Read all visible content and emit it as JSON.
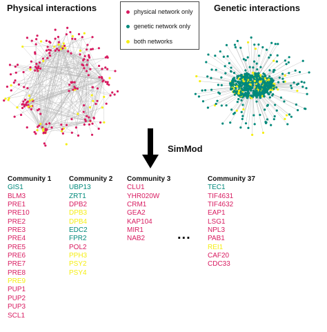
{
  "colors": {
    "physical": "#d81b60",
    "genetic": "#00897b",
    "both": "#f5ee14",
    "edges": "#b5b5b5",
    "text": "#111111"
  },
  "titles": {
    "physical": "Physical interactions",
    "genetic": "Genetic interactions"
  },
  "legend": [
    {
      "label": "physical network only",
      "color": "#d81b60"
    },
    {
      "label": "genetic network only",
      "color": "#00897b"
    },
    {
      "label": "both networks",
      "color": "#f5ee14"
    }
  ],
  "method_label": "SimMod",
  "ellipsis": "...",
  "communities": [
    {
      "title": "Community 1",
      "genes": [
        {
          "name": "GIS1",
          "net": "genetic"
        },
        {
          "name": "BLM3",
          "net": "physical"
        },
        {
          "name": "PRE1",
          "net": "physical"
        },
        {
          "name": "PRE10",
          "net": "physical"
        },
        {
          "name": "PRE2",
          "net": "physical"
        },
        {
          "name": "PRE3",
          "net": "physical"
        },
        {
          "name": "PRE4",
          "net": "physical"
        },
        {
          "name": "PRE5",
          "net": "physical"
        },
        {
          "name": "PRE6",
          "net": "physical"
        },
        {
          "name": "PRE7",
          "net": "physical"
        },
        {
          "name": "PRE8",
          "net": "physical"
        },
        {
          "name": "PRE9",
          "net": "both"
        },
        {
          "name": "PUP1",
          "net": "physical"
        },
        {
          "name": "PUP2",
          "net": "physical"
        },
        {
          "name": "PUP3",
          "net": "physical"
        },
        {
          "name": "SCL1",
          "net": "physical"
        }
      ]
    },
    {
      "title": "Community 2",
      "genes": [
        {
          "name": "UBP13",
          "net": "genetic"
        },
        {
          "name": "ZRT1",
          "net": "genetic"
        },
        {
          "name": "DPB2",
          "net": "physical"
        },
        {
          "name": "DPB3",
          "net": "both"
        },
        {
          "name": "DPB4",
          "net": "both"
        },
        {
          "name": "EDC2",
          "net": "genetic"
        },
        {
          "name": "FPR2",
          "net": "genetic"
        },
        {
          "name": "POL2",
          "net": "physical"
        },
        {
          "name": "PPH3",
          "net": "both"
        },
        {
          "name": "PSY2",
          "net": "both"
        },
        {
          "name": "PSY4",
          "net": "both"
        }
      ]
    },
    {
      "title": "Community 3",
      "genes": [
        {
          "name": "CLU1",
          "net": "physical"
        },
        {
          "name": "YHR020W",
          "net": "physical"
        },
        {
          "name": "CRM1",
          "net": "physical"
        },
        {
          "name": "GEA2",
          "net": "physical"
        },
        {
          "name": "KAP104",
          "net": "physical"
        },
        {
          "name": "MIR1",
          "net": "physical"
        },
        {
          "name": "NAB2",
          "net": "physical"
        }
      ]
    },
    {
      "title": "Community 37",
      "genes": [
        {
          "name": "TEC1",
          "net": "genetic"
        },
        {
          "name": "TIF4631",
          "net": "physical"
        },
        {
          "name": "TIF4632",
          "net": "physical"
        },
        {
          "name": "EAP1",
          "net": "physical"
        },
        {
          "name": "LSG1",
          "net": "physical"
        },
        {
          "name": "NPL3",
          "net": "physical"
        },
        {
          "name": "PAB1",
          "net": "physical"
        },
        {
          "name": "REI1",
          "net": "both"
        },
        {
          "name": "CAF20",
          "net": "physical"
        },
        {
          "name": "CDC33",
          "net": "physical"
        }
      ]
    }
  ]
}
